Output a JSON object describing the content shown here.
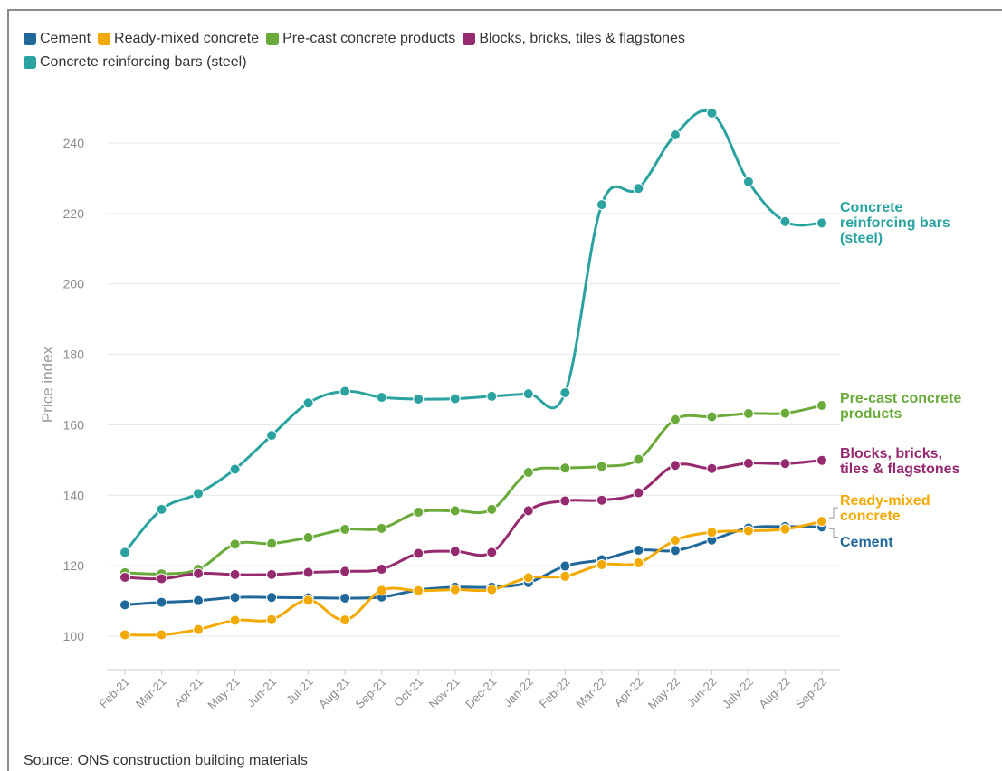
{
  "chart_data": {
    "type": "line",
    "ylabel": "Price index",
    "ylim": [
      90,
      250
    ],
    "yticks": [
      100,
      120,
      140,
      160,
      180,
      200,
      220,
      240
    ],
    "grid": true,
    "legend_placement": "top",
    "categories": [
      "Feb-21",
      "Mar-21",
      "Apr-21",
      "May-21",
      "Jun-21",
      "Jul-21",
      "Aug-21",
      "Sep-21",
      "Oct-21",
      "Nov-21",
      "Dec-21",
      "Jan-22",
      "Feb-22",
      "Mar-22",
      "Apr-22",
      "May-22",
      "Jun-22",
      "July-22",
      "Aug-22",
      "Sep-22"
    ],
    "series": [
      {
        "name": "Cement",
        "color": "#1f6899",
        "end_label": [
          "Cement"
        ],
        "values": [
          108.9,
          109.6,
          110.1,
          111.0,
          111.0,
          110.9,
          110.8,
          111.1,
          113.1,
          113.9,
          113.9,
          115.2,
          119.9,
          121.7,
          124.4,
          124.3,
          127.3,
          130.7,
          131.1,
          131.0
        ]
      },
      {
        "name": "Ready-mixed concrete",
        "color": "#f2a900",
        "end_label": [
          "Ready-mixed",
          "concrete"
        ],
        "values": [
          100.4,
          100.4,
          101.9,
          104.5,
          104.7,
          110.2,
          104.6,
          113.0,
          112.9,
          113.2,
          113.2,
          116.6,
          117.0,
          120.3,
          120.8,
          127.2,
          129.5,
          129.9,
          130.4,
          132.6
        ]
      },
      {
        "name": "Pre-cast concrete products",
        "color": "#6aaa3a",
        "end_label": [
          "Pre-cast concrete",
          "products"
        ],
        "values": [
          118.0,
          117.7,
          119.0,
          126.1,
          126.3,
          128.0,
          130.3,
          130.6,
          135.2,
          135.6,
          136.0,
          146.5,
          147.7,
          148.2,
          150.2,
          161.5,
          162.3,
          163.2,
          163.3,
          165.5
        ]
      },
      {
        "name": "Blocks, bricks, tiles  & flagstones",
        "color": "#962a6f",
        "end_label": [
          "Blocks, bricks,",
          "tiles & flagstones"
        ],
        "values": [
          116.7,
          116.3,
          117.8,
          117.5,
          117.5,
          118.1,
          118.4,
          119.0,
          123.5,
          124.1,
          123.8,
          135.6,
          138.4,
          138.6,
          140.7,
          148.5,
          147.6,
          149.1,
          149.0,
          149.9
        ]
      },
      {
        "name": "Concrete reinforcing bars (steel)",
        "color": "#2aa3a0",
        "end_label": [
          "Concrete",
          "reinforcing bars",
          "(steel)"
        ],
        "values": [
          123.8,
          136.0,
          140.5,
          147.4,
          157.0,
          166.2,
          169.5,
          167.8,
          167.3,
          167.4,
          168.1,
          168.8,
          169.1,
          222.5,
          227.1,
          242.3,
          248.5,
          229.0,
          217.7,
          217.3
        ]
      }
    ]
  },
  "source": {
    "prefix": "Source: ",
    "link_text": "ONS construction building materials"
  }
}
